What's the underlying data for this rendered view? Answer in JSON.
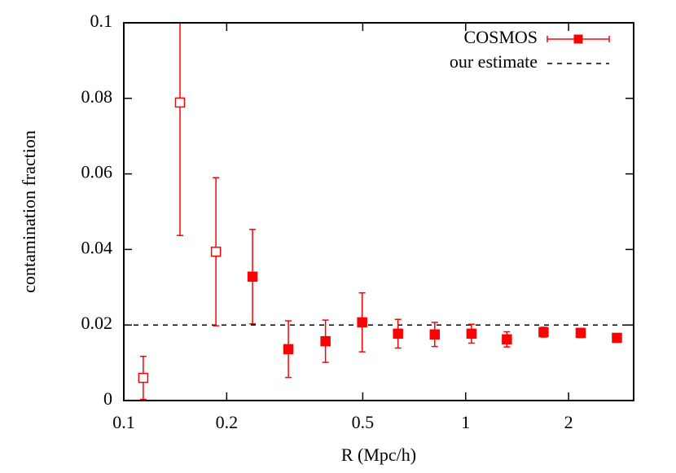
{
  "chart_data": {
    "type": "errorbar",
    "x_label": "R (Mpc/h)",
    "y_label": "contamination fraction",
    "x_scale": "log",
    "xlim": [
      0.1,
      3.1
    ],
    "ylim": [
      0,
      0.1
    ],
    "xticks": [
      0.1,
      0.2,
      0.5,
      1,
      2
    ],
    "yticks": [
      0,
      0.02,
      0.04,
      0.06,
      0.08,
      0.1
    ],
    "legend": "top-right",
    "series": [
      {
        "name": "COSMOS",
        "color": "#ff0000",
        "x": [
          0.114,
          0.146,
          0.186,
          0.238,
          0.303,
          0.389,
          0.498,
          0.634,
          0.812,
          1.04,
          1.32,
          1.69,
          2.17,
          2.77
        ],
        "values": [
          0.006,
          0.0789,
          0.0394,
          0.0328,
          0.0136,
          0.0157,
          0.0207,
          0.0177,
          0.0175,
          0.0177,
          0.0162,
          0.0181,
          0.0179,
          0.0166
        ],
        "errors": [
          0.0057,
          0.0352,
          0.0196,
          0.0125,
          0.0075,
          0.0056,
          0.0078,
          0.0038,
          0.0032,
          0.0025,
          0.002,
          0.0013,
          0.0012,
          0.0006
        ],
        "hollow": [
          true,
          true,
          true,
          false,
          false,
          false,
          false,
          false,
          false,
          false,
          false,
          false,
          false,
          false
        ]
      }
    ],
    "reference_lines": [
      {
        "name": "our estimate",
        "value": 0.02,
        "color": "#000000",
        "dashed": true
      }
    ]
  }
}
